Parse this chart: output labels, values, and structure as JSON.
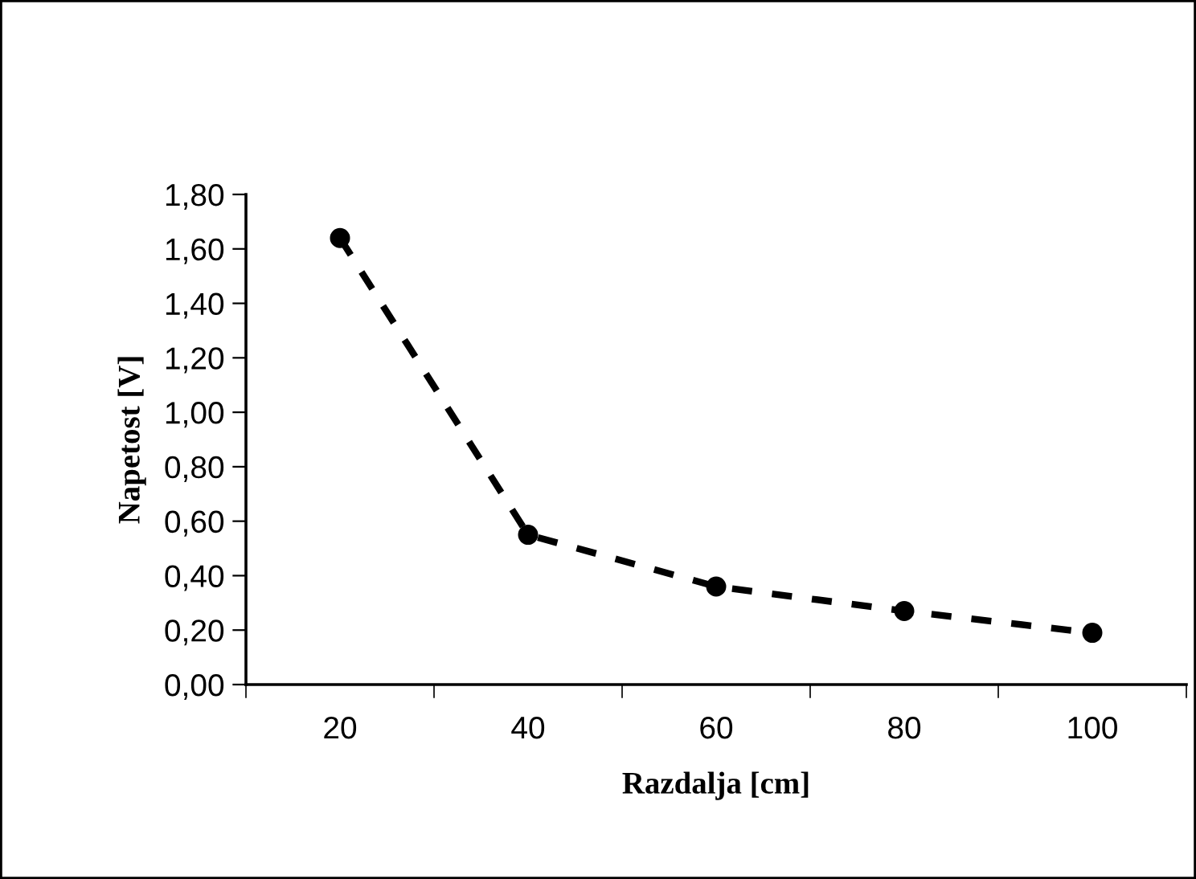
{
  "chart_data": {
    "type": "line",
    "xlabel": "Razdalja [cm]",
    "ylabel": "Napetost [V]",
    "categories": [
      "20",
      "40",
      "60",
      "80",
      "100"
    ],
    "series": [
      {
        "color": "#000000",
        "values": [
          1.64,
          0.55,
          0.36,
          0.27,
          0.19
        ]
      }
    ],
    "ylim": [
      0,
      1.8
    ],
    "yticks": [
      {
        "value": 0,
        "label": "0,00"
      },
      {
        "value": 0.2,
        "label": "0,20"
      },
      {
        "value": 0.4,
        "label": "0,40"
      },
      {
        "value": 0.6,
        "label": "0,60"
      },
      {
        "value": 0.8,
        "label": "0,80"
      },
      {
        "value": 1.0,
        "label": "1,00"
      },
      {
        "value": 1.2,
        "label": "1,20"
      },
      {
        "value": 1.4,
        "label": "1,40"
      },
      {
        "value": 1.6,
        "label": "1,60"
      },
      {
        "value": 1.8,
        "label": "1,80"
      }
    ],
    "marker": "circle",
    "line_style": "dashed",
    "grid": false,
    "legend": false
  }
}
